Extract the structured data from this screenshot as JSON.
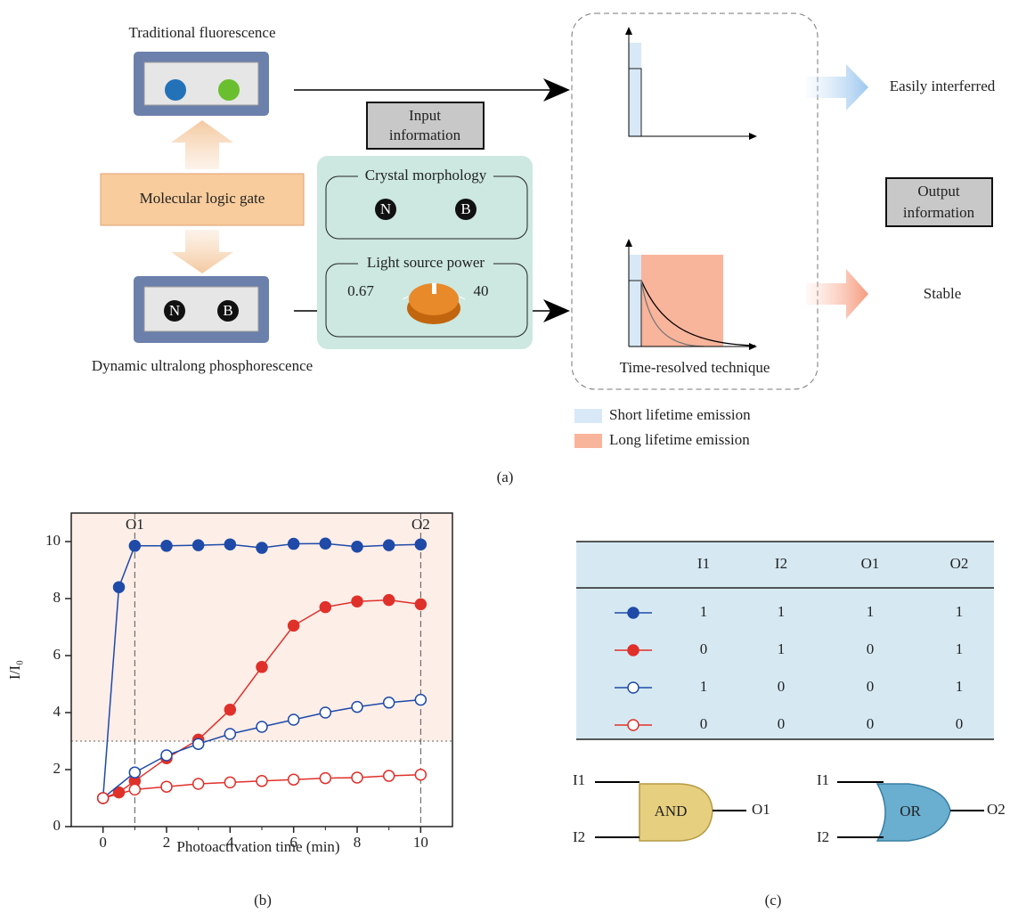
{
  "figure": {
    "panel_labels": [
      "(a)",
      "(b)",
      "(c)"
    ]
  },
  "diagram": {
    "traditional": "Traditional fluorescence",
    "logic_gate": "Molecular logic gate",
    "dynamic": "Dynamic ultralong phosphorescence",
    "device_labels": [
      "N",
      "B"
    ],
    "input_information": [
      "Input",
      "information"
    ],
    "crystal": {
      "title": "Crystal morphology",
      "labels": [
        "N",
        "B"
      ]
    },
    "light": {
      "title": "Light source power",
      "low": 0.67,
      "high": 40
    },
    "technique": "Time-resolved technique",
    "outputs": [
      "Easily interferred",
      "Stable"
    ],
    "output_information": [
      "Output",
      "information"
    ],
    "legend": [
      "Short lifetime emission",
      "Long lifetime emission"
    ]
  },
  "chart_data": {
    "type": "line",
    "xlabel": "Photoactivation time (min)",
    "ylabel": "I/I₀",
    "xlim": [
      -1,
      11
    ],
    "ylim": [
      0,
      11
    ],
    "xticks": [
      0,
      2,
      4,
      6,
      8,
      10
    ],
    "xminorticks": [
      1,
      3,
      5,
      7,
      9
    ],
    "yticks": [
      0,
      2,
      4,
      6,
      8,
      10
    ],
    "threshold": 3,
    "vlines": [
      {
        "x": 1,
        "label": "O1"
      },
      {
        "x": 10,
        "label": "O2"
      }
    ],
    "series": [
      {
        "color": "#1f4aa8",
        "marker": "filled",
        "x": [
          0,
          0.5,
          1,
          2,
          3,
          4,
          5,
          6,
          7,
          8,
          9,
          10
        ],
        "values": [
          1,
          8.4,
          9.85,
          9.85,
          9.87,
          9.9,
          9.78,
          9.92,
          9.93,
          9.82,
          9.87,
          9.9
        ]
      },
      {
        "color": "#e0302a",
        "marker": "filled",
        "x": [
          0,
          0.5,
          1,
          2,
          3,
          4,
          5,
          6,
          7,
          8,
          9,
          10
        ],
        "values": [
          1,
          1.2,
          1.6,
          2.4,
          3.05,
          4.1,
          5.6,
          7.05,
          7.7,
          7.9,
          7.95,
          7.8
        ]
      },
      {
        "color": "#1f4aa8",
        "marker": "open",
        "x": [
          0,
          1,
          2,
          3,
          4,
          5,
          6,
          7,
          8,
          9,
          10
        ],
        "values": [
          1,
          1.9,
          2.5,
          2.9,
          3.25,
          3.5,
          3.75,
          4.0,
          4.2,
          4.35,
          4.45
        ]
      },
      {
        "color": "#e0302a",
        "marker": "open",
        "x": [
          0,
          1,
          2,
          3,
          4,
          5,
          6,
          7,
          8,
          9,
          10
        ],
        "values": [
          1,
          1.3,
          1.4,
          1.5,
          1.55,
          1.6,
          1.65,
          1.7,
          1.72,
          1.78,
          1.82
        ]
      }
    ]
  },
  "table": {
    "headers": [
      "I1",
      "I2",
      "O1",
      "O2"
    ],
    "rows": [
      [
        1,
        1,
        1,
        1
      ],
      [
        0,
        1,
        0,
        1
      ],
      [
        1,
        0,
        0,
        1
      ],
      [
        0,
        0,
        0,
        0
      ]
    ]
  },
  "gates": [
    {
      "label": "AND",
      "inputs": [
        "I1",
        "I2"
      ],
      "output": "O1"
    },
    {
      "label": "OR",
      "inputs": [
        "I1",
        "I2"
      ],
      "output": "O2"
    }
  ]
}
